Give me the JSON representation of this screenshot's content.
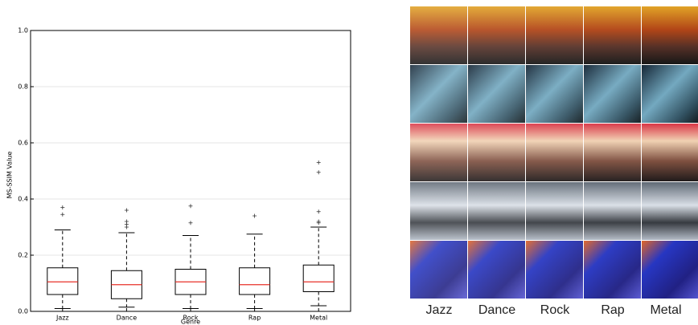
{
  "chart_data": {
    "type": "box",
    "ylabel": "MS-SSIM Value",
    "xlabel": "Genre",
    "categories": [
      "Jazz",
      "Dance",
      "Rock",
      "Rap",
      "Metal"
    ],
    "stats": [
      {
        "whislo": 0.01,
        "q1": 0.06,
        "med": 0.105,
        "q3": 0.155,
        "whishi": 0.29,
        "fliers": [
          0.37,
          0.345
        ]
      },
      {
        "whislo": 0.015,
        "q1": 0.045,
        "med": 0.095,
        "q3": 0.145,
        "whishi": 0.28,
        "fliers": [
          0.36,
          0.32,
          0.31,
          0.3
        ]
      },
      {
        "whislo": 0.01,
        "q1": 0.06,
        "med": 0.105,
        "q3": 0.15,
        "whishi": 0.27,
        "fliers": [
          0.375,
          0.315
        ]
      },
      {
        "whislo": 0.01,
        "q1": 0.06,
        "med": 0.095,
        "q3": 0.155,
        "whishi": 0.275,
        "fliers": [
          0.34
        ]
      },
      {
        "whislo": 0.02,
        "q1": 0.07,
        "med": 0.105,
        "q3": 0.165,
        "whishi": 0.3,
        "fliers": [
          0.53,
          0.495,
          0.355,
          0.32,
          0.315
        ]
      }
    ],
    "box_color": "#000000",
    "median_color": "#e8312a",
    "ylim": [
      0,
      1
    ],
    "yticks": [
      {
        "value": 0,
        "label": "0.0"
      },
      0.2,
      0.4,
      0.6,
      0.8,
      {
        "value": 1,
        "label": "1.0"
      }
    ],
    "grid": true
  },
  "image_grid": {
    "column_labels": [
      "Jazz",
      "Dance",
      "Rock",
      "Rap",
      "Metal"
    ]
  }
}
